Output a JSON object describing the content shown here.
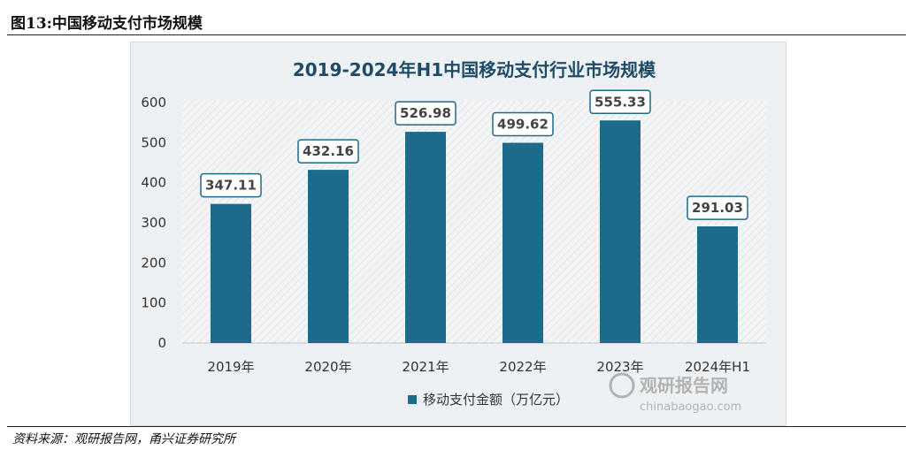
{
  "figure": {
    "title": "图13:中国移动支付市场规模",
    "source": "资料来源：观研报告网，甬兴证券研究所"
  },
  "watermark": {
    "name": "观研报告网",
    "url": "chinabaogao.com"
  },
  "colors": {
    "bar": "#1c6a8c",
    "title": "#1e4c66",
    "panel": "#eef1f3"
  },
  "chart_data": {
    "type": "bar",
    "title": "2019-2024年H1中国移动支付行业市场规模",
    "categories": [
      "2019年",
      "2020年",
      "2021年",
      "2022年",
      "2023年",
      "2024年H1"
    ],
    "series": [
      {
        "name": "移动支付金额（万亿元）",
        "values": [
          347.11,
          432.16,
          526.98,
          499.62,
          555.33,
          291.03
        ]
      }
    ],
    "data_labels": [
      "347.11",
      "432.16",
      "526.98",
      "499.62",
      "555.33",
      "291.03"
    ],
    "y_ticks": [
      "0",
      "100",
      "200",
      "300",
      "400",
      "500",
      "600"
    ],
    "ylim": [
      0,
      600
    ],
    "grid": false,
    "legend_position": "bottom-center"
  }
}
